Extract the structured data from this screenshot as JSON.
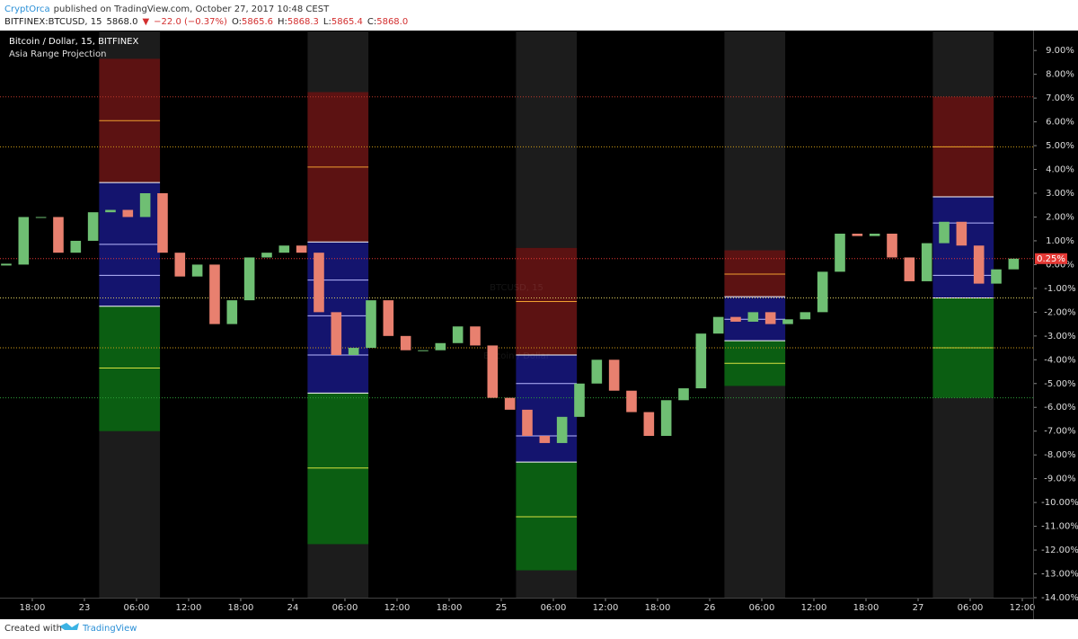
{
  "header": {
    "author": "CryptOrca",
    "published": "published on TradingView.com, October 27, 2017 10:48 CEST",
    "quote": [
      "BITFINEX:BTCUSD, 15",
      "5868.0",
      "▼",
      "−22.0 (−0.37%)",
      "O:",
      "5865.6",
      "H:",
      "5868.3",
      "L:",
      "5865.4",
      "C:",
      "5868.0"
    ]
  },
  "chart_data": {
    "type": "candlestick",
    "title": "Bitcoin / Dollar, 15, BITFINEX",
    "subtitle": "Asia Range Projection",
    "watermark": "BTCUSD, 15",
    "watermark_sub": "Bitcoin / Dollar",
    "x": [
      -3,
      -1,
      1,
      3,
      5,
      7,
      9,
      11,
      13,
      15,
      17,
      19,
      21,
      23,
      25,
      27,
      29,
      31,
      33,
      35,
      37,
      39,
      41,
      43,
      45,
      47,
      49,
      51,
      53,
      55,
      57,
      59,
      61,
      63,
      65,
      67,
      69,
      71,
      73,
      75,
      77,
      79,
      81,
      83,
      85,
      87,
      89,
      91,
      93,
      95,
      97,
      99,
      101,
      103,
      105,
      107,
      109,
      111,
      113
    ],
    "values": [
      0.0,
      2.0,
      2.0,
      0.5,
      1.0,
      2.2,
      2.3,
      2.0,
      3.0,
      0.5,
      -0.5,
      0.0,
      -2.5,
      -1.5,
      0.3,
      0.5,
      0.8,
      0.5,
      -2.0,
      -3.8,
      -3.5,
      -1.5,
      -3.0,
      -3.6,
      -3.6,
      -3.3,
      -2.6,
      -3.4,
      -5.6,
      -6.1,
      -7.2,
      -7.5,
      -6.4,
      -5.0,
      -4.0,
      -5.3,
      -6.2,
      -7.2,
      -5.7,
      -5.2,
      -2.9,
      -2.2,
      -2.4,
      -2.0,
      -2.5,
      -2.3,
      -2.0,
      -0.3,
      1.3,
      1.2,
      1.3,
      0.3,
      -0.7,
      0.9,
      1.8,
      0.8,
      -0.8,
      -0.2,
      0.25
    ],
    "up_color": "#6fbf73",
    "down_color": "#e8806f",
    "xlim": [
      -3.72,
      115.24
    ],
    "xticks": [
      {
        "value": 0,
        "label": "18:00"
      },
      {
        "value": 6,
        "label": "23"
      },
      {
        "value": 12,
        "label": "06:00"
      },
      {
        "value": 18,
        "label": "12:00"
      },
      {
        "value": 24,
        "label": "18:00"
      },
      {
        "value": 30,
        "label": "24"
      },
      {
        "value": 36,
        "label": "06:00"
      },
      {
        "value": 42,
        "label": "12:00"
      },
      {
        "value": 48,
        "label": "18:00"
      },
      {
        "value": 54,
        "label": "25"
      },
      {
        "value": 60,
        "label": "06:00"
      },
      {
        "value": 66,
        "label": "12:00"
      },
      {
        "value": 72,
        "label": "18:00"
      },
      {
        "value": 78,
        "label": "26"
      },
      {
        "value": 84,
        "label": "06:00"
      },
      {
        "value": 90,
        "label": "12:00"
      },
      {
        "value": 96,
        "label": "18:00"
      },
      {
        "value": 102,
        "label": "27"
      },
      {
        "value": 108,
        "label": "06:00"
      },
      {
        "value": 114,
        "label": "12:00"
      }
    ],
    "ylim": [
      -14,
      9.8
    ],
    "yticks": [
      {
        "value": 9,
        "label": "9.00%"
      },
      {
        "value": 8,
        "label": "8.00%"
      },
      {
        "value": 7,
        "label": "7.00%"
      },
      {
        "value": 6,
        "label": "6.00%"
      },
      {
        "value": 5,
        "label": "5.00%"
      },
      {
        "value": 4,
        "label": "4.00%"
      },
      {
        "value": 3,
        "label": "3.00%"
      },
      {
        "value": 2,
        "label": "2.00%"
      },
      {
        "value": 1,
        "label": "1.00%"
      },
      {
        "value": 0,
        "label": "0.00%"
      },
      {
        "value": -1,
        "label": "-1.00%"
      },
      {
        "value": -2,
        "label": "-2.00%"
      },
      {
        "value": -3,
        "label": "-3.00%"
      },
      {
        "value": -4,
        "label": "-4.00%"
      },
      {
        "value": -5,
        "label": "-5.00%"
      },
      {
        "value": -6,
        "label": "-6.00%"
      },
      {
        "value": -7,
        "label": "-7.00%"
      },
      {
        "value": -8,
        "label": "-8.00%"
      },
      {
        "value": -9,
        "label": "-9.00%"
      },
      {
        "value": -10,
        "label": "-10.00%"
      },
      {
        "value": -11,
        "label": "-11.00%"
      },
      {
        "value": -12,
        "label": "-12.00%"
      },
      {
        "value": -13,
        "label": "-13.00%"
      },
      {
        "value": -14,
        "label": "-14.00%"
      }
    ],
    "last_price": {
      "value": 0.25,
      "label": "0.25%",
      "color": "#e53935"
    },
    "sessions": [
      {
        "start": 7.7,
        "end": 14.7,
        "red_top": 8.65,
        "high": 3.45,
        "low": -1.75,
        "green_bottom": -7.0,
        "levels": [
          6.05,
          0.85,
          -0.45,
          -4.35
        ]
      },
      {
        "start": 31.7,
        "end": 38.7,
        "red_top": 7.25,
        "high": 0.95,
        "low": -5.4,
        "green_bottom": -11.75,
        "levels": [
          4.1,
          -0.65,
          -2.15,
          -3.8,
          -8.55
        ]
      },
      {
        "start": 55.7,
        "end": 62.7,
        "red_top": 0.7,
        "high": -3.8,
        "low": -8.3,
        "green_bottom": -12.85,
        "levels": [
          -1.55,
          -5.0,
          -7.2,
          -10.6
        ]
      },
      {
        "start": 79.7,
        "end": 86.7,
        "red_top": 0.6,
        "high": -1.35,
        "low": -3.2,
        "green_bottom": -5.1,
        "levels": [
          -0.4,
          -2.3,
          -4.15
        ]
      },
      {
        "start": 103.7,
        "end": 110.7,
        "red_top": 7.05,
        "high": 2.85,
        "low": -1.4,
        "green_bottom": -5.6,
        "levels": [
          4.95,
          1.75,
          -0.45,
          -3.5
        ]
      }
    ],
    "hlines": [
      {
        "value": 7.05,
        "color": "#c0392b"
      },
      {
        "value": 4.95,
        "color": "#d4a017"
      },
      {
        "value": -1.4,
        "color": "#e0d060"
      },
      {
        "value": -3.5,
        "color": "#d4a017"
      },
      {
        "value": -5.6,
        "color": "#2e9e3a"
      }
    ]
  },
  "footer": {
    "created": "Created with",
    "brand": "TradingView"
  }
}
